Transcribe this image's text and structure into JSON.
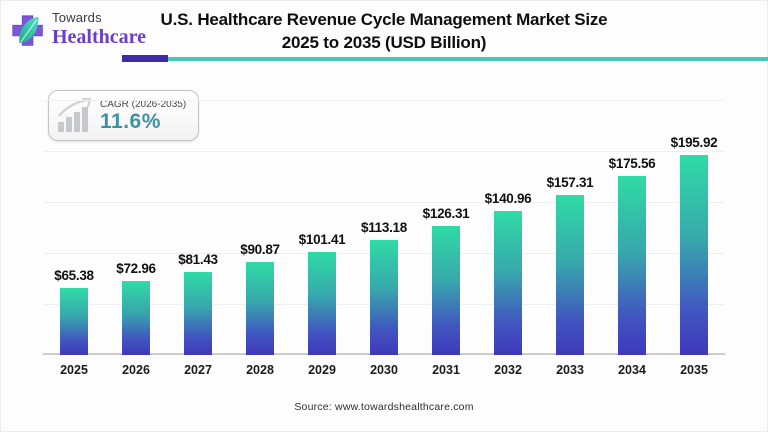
{
  "brand": {
    "top": "Towards",
    "bottom": "Healthcare"
  },
  "title": {
    "line1": "U.S. Healthcare Revenue Cycle Management Market Size",
    "line2": "2025 to 2035 (USD Billion)"
  },
  "cagr_badge": {
    "label": "CAGR (2026-2035)",
    "value": "11.6%"
  },
  "source_note": "Source: www.towardshealthcare.com",
  "colors": {
    "bar_gradient_top": "#2FDBA5",
    "bar_gradient_bottom": "#4038BB",
    "accent_purple": "#3E2BA6",
    "accent_teal": "#45C9B3",
    "brand_purple": "#6A3EC8",
    "cagr_value_teal": "#3E92A0"
  },
  "chart_data": {
    "type": "bar",
    "title": "U.S. Healthcare Revenue Cycle Management Market Size 2025 to 2035 (USD Billion)",
    "categories": [
      "2025",
      "2026",
      "2027",
      "2028",
      "2029",
      "2030",
      "2031",
      "2032",
      "2033",
      "2034",
      "2035"
    ],
    "values": [
      65.38,
      72.96,
      81.43,
      90.87,
      101.41,
      113.18,
      126.31,
      140.96,
      157.31,
      175.56,
      195.92
    ],
    "value_labels": [
      "$65.38",
      "$72.96",
      "$81.43",
      "$90.87",
      "$101.41",
      "$113.18",
      "$126.31",
      "$140.96",
      "$157.31",
      "$175.56",
      "$195.92"
    ],
    "xlabel": "",
    "ylabel": "",
    "ylim": [
      0,
      250
    ],
    "gridline_values": [
      50,
      100,
      150,
      200,
      250
    ],
    "grid": true,
    "legend": false,
    "y_tick_labels_visible": false
  }
}
